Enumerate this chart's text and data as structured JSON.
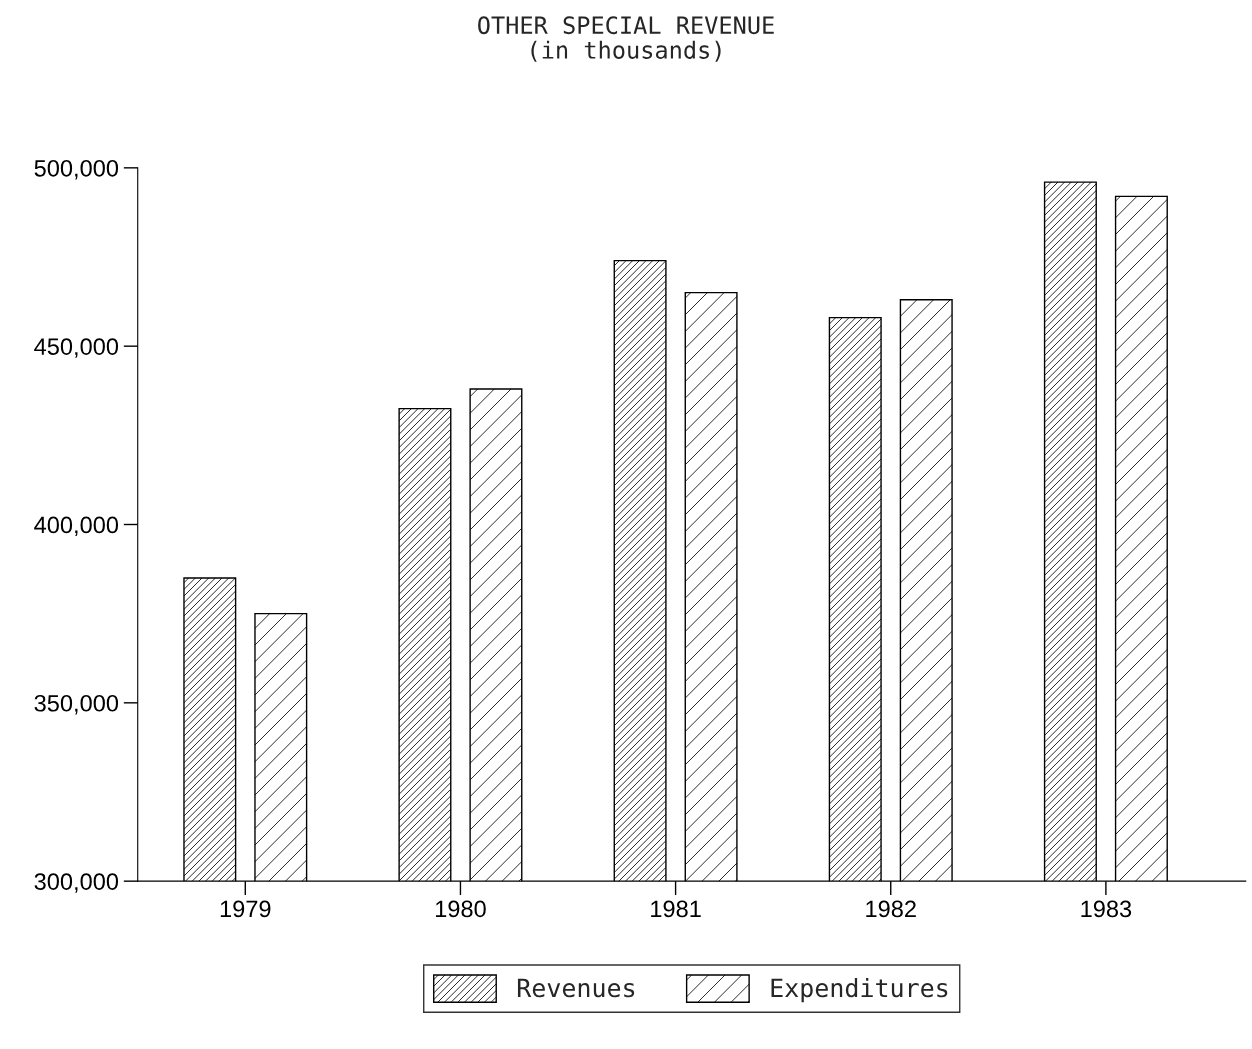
{
  "chart_data": {
    "type": "bar",
    "title": "OTHER SPECIAL REVENUE",
    "subtitle": "(in thousands)",
    "categories": [
      "1979",
      "1980",
      "1981",
      "1982",
      "1983"
    ],
    "series": [
      {
        "name": "Revenues",
        "color": "#000000",
        "values": [
          385000,
          432500,
          474000,
          458000,
          496000
        ]
      },
      {
        "name": "Expenditures",
        "color": "#000000",
        "values": [
          375000,
          438000,
          465000,
          463000,
          492000
        ]
      }
    ],
    "ylim": [
      300000,
      500000
    ],
    "yticks": [
      {
        "value": 300000,
        "label": "300,000"
      },
      {
        "value": 350000,
        "label": "350,000"
      },
      {
        "value": 400000,
        "label": "400,000"
      },
      {
        "value": 450000,
        "label": "450,000"
      },
      {
        "value": 500000,
        "label": "500,000"
      }
    ],
    "grid": false,
    "legend": "bottom"
  }
}
